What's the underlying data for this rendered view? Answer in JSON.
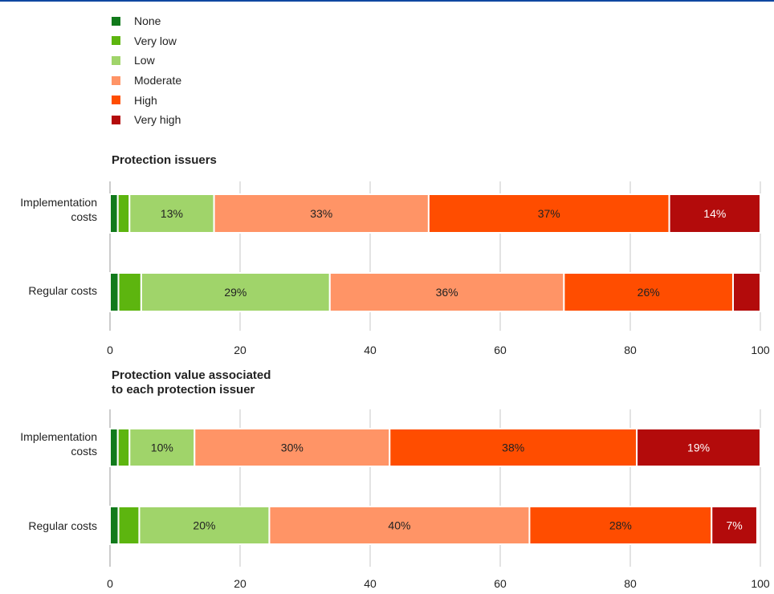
{
  "chart_data": [
    {
      "type": "bar",
      "orientation": "horizontal",
      "stacked": true,
      "title": "Protection issuers",
      "categories": [
        "Implementation costs",
        "Regular costs"
      ],
      "series": [
        {
          "name": "None",
          "values": [
            1.2,
            1.3
          ],
          "labels": [
            "",
            ""
          ]
        },
        {
          "name": "Very low",
          "values": [
            1.8,
            3.5
          ],
          "labels": [
            "",
            ""
          ]
        },
        {
          "name": "Low",
          "values": [
            13,
            29
          ],
          "labels": [
            "13%",
            "29%"
          ]
        },
        {
          "name": "Moderate",
          "values": [
            33,
            36
          ],
          "labels": [
            "33%",
            "36%"
          ]
        },
        {
          "name": "High",
          "values": [
            37,
            26
          ],
          "labels": [
            "37%",
            "26%"
          ]
        },
        {
          "name": "Very high",
          "values": [
            14,
            4.2
          ],
          "labels": [
            "14%",
            ""
          ]
        }
      ],
      "xlim": [
        0,
        100
      ],
      "xticks": [
        "0",
        "20",
        "40",
        "60",
        "80",
        "100"
      ],
      "grid": true
    },
    {
      "type": "bar",
      "orientation": "horizontal",
      "stacked": true,
      "title": "Protection value associated to each protection issuer",
      "title_lines": [
        "Protection value associated",
        "to each protection issuer"
      ],
      "categories": [
        "Implementation costs",
        "Regular costs"
      ],
      "series": [
        {
          "name": "None",
          "values": [
            1.2,
            1.3
          ],
          "labels": [
            "",
            ""
          ]
        },
        {
          "name": "Very low",
          "values": [
            1.8,
            3.2
          ],
          "labels": [
            "",
            ""
          ]
        },
        {
          "name": "Low",
          "values": [
            10,
            20
          ],
          "labels": [
            "10%",
            "20%"
          ]
        },
        {
          "name": "Moderate",
          "values": [
            30,
            40
          ],
          "labels": [
            "30%",
            "40%"
          ]
        },
        {
          "name": "High",
          "values": [
            38,
            28
          ],
          "labels": [
            "38%",
            "28%"
          ]
        },
        {
          "name": "Very high",
          "values": [
            19,
            7
          ],
          "labels": [
            "19%",
            "7%"
          ]
        }
      ],
      "xlim": [
        0,
        100
      ],
      "xticks": [
        "0",
        "20",
        "40",
        "60",
        "80",
        "100"
      ],
      "grid": true
    }
  ],
  "legend": {
    "items": [
      {
        "label": "None",
        "color": "#117a1b"
      },
      {
        "label": "Very low",
        "color": "#5db50f"
      },
      {
        "label": "Low",
        "color": "#a0d46a"
      },
      {
        "label": "Moderate",
        "color": "#ff9466"
      },
      {
        "label": "High",
        "color": "#ff4d00"
      },
      {
        "label": "Very high",
        "color": "#b30b0b"
      }
    ]
  },
  "colors": {
    "label_text_light": "#ffffff",
    "label_text_dark": "#222222",
    "grid": "#e3e3e3",
    "axis": "#999999",
    "accent_line": "#0e47a1"
  }
}
